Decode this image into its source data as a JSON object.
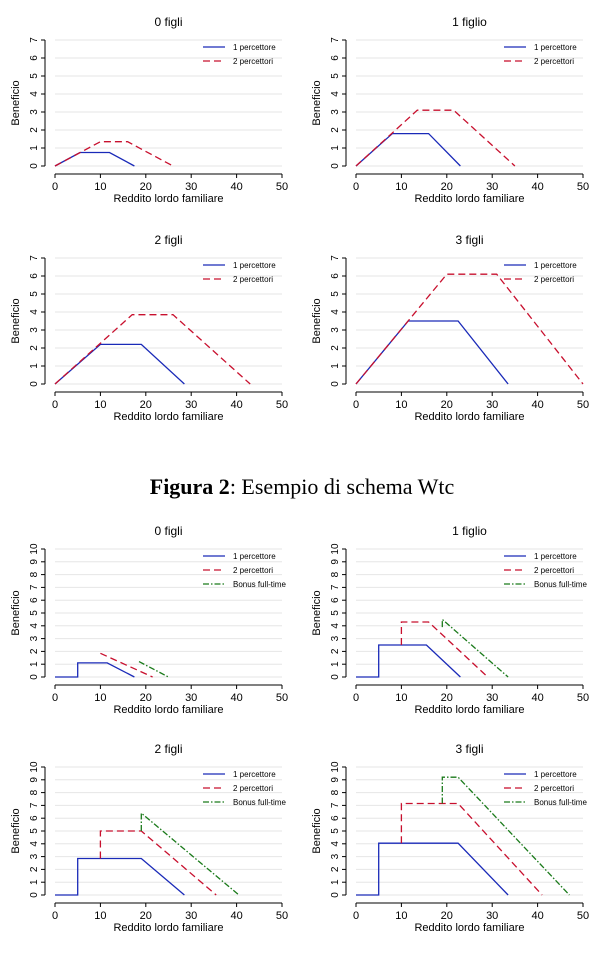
{
  "caption": {
    "label": "Figura 2",
    "text": ": Esempio di schema Wtc"
  },
  "colors": {
    "one_earner": "#1a2ab8",
    "two_earners": "#c8102e",
    "full_time": "#1a7a1a",
    "axis": "#000000",
    "grid": "#e6e6e6"
  },
  "chart_data": [
    {
      "type": "line",
      "group": "top",
      "title": "0 figli",
      "xlabel": "Reddito lordo familiare",
      "ylabel": "Beneficio",
      "xlim": [
        0,
        50
      ],
      "ylim": [
        0,
        7
      ],
      "xticks": [
        0,
        10,
        20,
        30,
        40,
        50
      ],
      "yticks": [
        0,
        1,
        2,
        3,
        4,
        5,
        6,
        7
      ],
      "legend_position": "top-right",
      "grid": true,
      "series": [
        {
          "name": "1 percettore",
          "style": "solid",
          "color": "#1a2ab8",
          "points": [
            [
              0,
              0
            ],
            [
              5.5,
              0.75
            ],
            [
              12,
              0.75
            ],
            [
              17.5,
              0
            ]
          ]
        },
        {
          "name": "2 percettori",
          "style": "dashed",
          "color": "#c8102e",
          "points": [
            [
              0,
              0
            ],
            [
              10,
              1.35
            ],
            [
              16,
              1.35
            ],
            [
              26,
              0
            ]
          ]
        }
      ]
    },
    {
      "type": "line",
      "group": "top",
      "title": "1 figlio",
      "xlabel": "Reddito lordo familiare",
      "ylabel": "Beneficio",
      "xlim": [
        0,
        50
      ],
      "ylim": [
        0,
        7
      ],
      "xticks": [
        0,
        10,
        20,
        30,
        40,
        50
      ],
      "yticks": [
        0,
        1,
        2,
        3,
        4,
        5,
        6,
        7
      ],
      "legend_position": "top-right",
      "grid": true,
      "series": [
        {
          "name": "1 percettore",
          "style": "solid",
          "color": "#1a2ab8",
          "points": [
            [
              0,
              0
            ],
            [
              8,
              1.8
            ],
            [
              16,
              1.8
            ],
            [
              23,
              0
            ]
          ]
        },
        {
          "name": "2 percettori",
          "style": "dashed",
          "color": "#c8102e",
          "points": [
            [
              0,
              0
            ],
            [
              13.5,
              3.1
            ],
            [
              21.5,
              3.1
            ],
            [
              35,
              0
            ]
          ]
        }
      ]
    },
    {
      "type": "line",
      "group": "top",
      "title": "2 figli",
      "xlabel": "Reddito lordo familiare",
      "ylabel": "Beneficio",
      "xlim": [
        0,
        50
      ],
      "ylim": [
        0,
        7
      ],
      "xticks": [
        0,
        10,
        20,
        30,
        40,
        50
      ],
      "yticks": [
        0,
        1,
        2,
        3,
        4,
        5,
        6,
        7
      ],
      "legend_position": "top-right",
      "grid": true,
      "series": [
        {
          "name": "1 percettore",
          "style": "solid",
          "color": "#1a2ab8",
          "points": [
            [
              0,
              0
            ],
            [
              10,
              2.2
            ],
            [
              19,
              2.2
            ],
            [
              28.5,
              0
            ]
          ]
        },
        {
          "name": "2 percettori",
          "style": "dashed",
          "color": "#c8102e",
          "points": [
            [
              0,
              0
            ],
            [
              17,
              3.85
            ],
            [
              26,
              3.85
            ],
            [
              43,
              0
            ]
          ]
        }
      ]
    },
    {
      "type": "line",
      "group": "top",
      "title": "3 figli",
      "xlabel": "Reddito lordo familiare",
      "ylabel": "Beneficio",
      "xlim": [
        0,
        50
      ],
      "ylim": [
        0,
        7
      ],
      "xticks": [
        0,
        10,
        20,
        30,
        40,
        50
      ],
      "yticks": [
        0,
        1,
        2,
        3,
        4,
        5,
        6,
        7
      ],
      "legend_position": "top-right",
      "grid": true,
      "series": [
        {
          "name": "1 percettore",
          "style": "solid",
          "color": "#1a2ab8",
          "points": [
            [
              0,
              0
            ],
            [
              11.5,
              3.5
            ],
            [
              22.5,
              3.5
            ],
            [
              33.5,
              0
            ]
          ]
        },
        {
          "name": "2 percettori",
          "style": "dashed",
          "color": "#c8102e",
          "points": [
            [
              0,
              0
            ],
            [
              20,
              6.1
            ],
            [
              31,
              6.1
            ],
            [
              50,
              0
            ]
          ]
        }
      ]
    },
    {
      "type": "line",
      "group": "bottom",
      "title": "0 figli",
      "xlabel": "Reddito lordo familiare",
      "ylabel": "Beneficio",
      "xlim": [
        0,
        50
      ],
      "ylim": [
        0,
        10
      ],
      "xticks": [
        0,
        10,
        20,
        30,
        40,
        50
      ],
      "yticks": [
        0,
        1,
        2,
        3,
        4,
        5,
        6,
        7,
        8,
        9,
        10
      ],
      "legend_position": "top-right",
      "grid": true,
      "series": [
        {
          "name": "1 percettore",
          "style": "solid",
          "color": "#1a2ab8",
          "points": [
            [
              0,
              0
            ],
            [
              5,
              0
            ],
            [
              5,
              1.1
            ],
            [
              11.5,
              1.1
            ],
            [
              17.5,
              0
            ]
          ]
        },
        {
          "name": "2 percettori",
          "style": "dashed",
          "color": "#c8102e",
          "points": [
            [
              10,
              1.85
            ],
            [
              21.5,
              0
            ]
          ]
        },
        {
          "name": "Bonus full-time",
          "style": "dashdot",
          "color": "#1a7a1a",
          "points": [
            [
              18.5,
              1.2
            ],
            [
              25,
              0
            ]
          ]
        }
      ]
    },
    {
      "type": "line",
      "group": "bottom",
      "title": "1 figlio",
      "xlabel": "Reddito lordo familiare",
      "ylabel": "Beneficio",
      "xlim": [
        0,
        50
      ],
      "ylim": [
        0,
        10
      ],
      "xticks": [
        0,
        10,
        20,
        30,
        40,
        50
      ],
      "yticks": [
        0,
        1,
        2,
        3,
        4,
        5,
        6,
        7,
        8,
        9,
        10
      ],
      "legend_position": "top-right",
      "grid": true,
      "series": [
        {
          "name": "1 percettore",
          "style": "solid",
          "color": "#1a2ab8",
          "points": [
            [
              0,
              0
            ],
            [
              5,
              0
            ],
            [
              5,
              2.5
            ],
            [
              15.5,
              2.5
            ],
            [
              23,
              0
            ]
          ]
        },
        {
          "name": "2 percettori",
          "style": "dashed",
          "color": "#c8102e",
          "points": [
            [
              10,
              2.5
            ],
            [
              10,
              4.3
            ],
            [
              16,
              4.3
            ],
            [
              29,
              0
            ]
          ]
        },
        {
          "name": "Bonus full-time",
          "style": "dashdot",
          "color": "#1a7a1a",
          "points": [
            [
              19,
              3.9
            ],
            [
              19,
              4.5
            ],
            [
              33.5,
              0
            ]
          ]
        }
      ]
    },
    {
      "type": "line",
      "group": "bottom",
      "title": "2 figli",
      "xlabel": "Reddito lordo familiare",
      "ylabel": "Beneficio",
      "xlim": [
        0,
        50
      ],
      "ylim": [
        0,
        10
      ],
      "xticks": [
        0,
        10,
        20,
        30,
        40,
        50
      ],
      "yticks": [
        0,
        1,
        2,
        3,
        4,
        5,
        6,
        7,
        8,
        9,
        10
      ],
      "legend_position": "top-right",
      "grid": true,
      "series": [
        {
          "name": "1 percettore",
          "style": "solid",
          "color": "#1a2ab8",
          "points": [
            [
              0,
              0
            ],
            [
              5,
              0
            ],
            [
              5,
              2.85
            ],
            [
              19,
              2.85
            ],
            [
              28.5,
              0
            ]
          ]
        },
        {
          "name": "2 percettori",
          "style": "dashed",
          "color": "#c8102e",
          "points": [
            [
              10,
              2.85
            ],
            [
              10,
              5.0
            ],
            [
              19,
              5.0
            ],
            [
              35.5,
              0
            ]
          ]
        },
        {
          "name": "Bonus full-time",
          "style": "dashdot",
          "color": "#1a7a1a",
          "points": [
            [
              19,
              5.0
            ],
            [
              19,
              6.4
            ],
            [
              40.5,
              0
            ]
          ]
        }
      ]
    },
    {
      "type": "line",
      "group": "bottom",
      "title": "3 figli",
      "xlabel": "Reddito lordo familiare",
      "ylabel": "Beneficio",
      "xlim": [
        0,
        50
      ],
      "ylim": [
        0,
        10
      ],
      "xticks": [
        0,
        10,
        20,
        30,
        40,
        50
      ],
      "yticks": [
        0,
        1,
        2,
        3,
        4,
        5,
        6,
        7,
        8,
        9,
        10
      ],
      "legend_position": "top-right",
      "grid": true,
      "series": [
        {
          "name": "1 percettore",
          "style": "solid",
          "color": "#1a2ab8",
          "points": [
            [
              0,
              0
            ],
            [
              5,
              0
            ],
            [
              5,
              4.05
            ],
            [
              22.5,
              4.05
            ],
            [
              33.5,
              0
            ]
          ]
        },
        {
          "name": "2 percettori",
          "style": "dashed",
          "color": "#c8102e",
          "points": [
            [
              10,
              4.05
            ],
            [
              10,
              7.15
            ],
            [
              22.5,
              7.15
            ],
            [
              41,
              0
            ]
          ]
        },
        {
          "name": "Bonus full-time",
          "style": "dashdot",
          "color": "#1a7a1a",
          "points": [
            [
              19,
              7.15
            ],
            [
              19,
              9.2
            ],
            [
              22.5,
              9.2
            ],
            [
              47,
              0
            ]
          ]
        }
      ]
    }
  ]
}
